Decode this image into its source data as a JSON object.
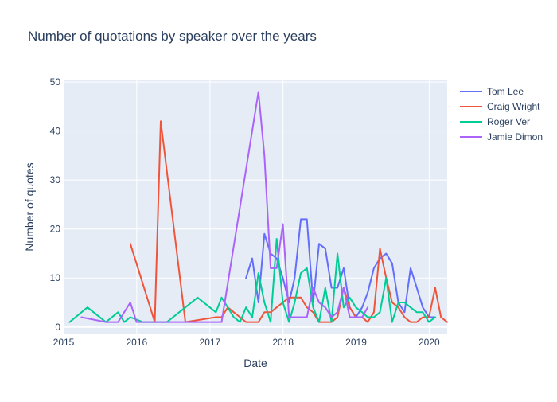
{
  "chart_data": {
    "type": "line",
    "title": "Number of quotations by speaker over the years",
    "xlabel": "Date",
    "ylabel": "Number of quotes",
    "xlim": [
      "2015-01-01",
      "2020-03-31"
    ],
    "ylim": [
      -1.5,
      50.5
    ],
    "xticks": [
      {
        "date": "2015-01-01",
        "label": "2015"
      },
      {
        "date": "2016-01-01",
        "label": "2016"
      },
      {
        "date": "2017-01-01",
        "label": "2017"
      },
      {
        "date": "2018-01-01",
        "label": "2018"
      },
      {
        "date": "2019-01-01",
        "label": "2019"
      },
      {
        "date": "2020-01-01",
        "label": "2020"
      }
    ],
    "yticks": [
      0,
      10,
      20,
      30,
      40,
      50
    ],
    "grid": true,
    "legend_position": "right",
    "series": [
      {
        "name": "Tom Lee",
        "color": "#636efa",
        "x": [
          "2017-06-30",
          "2017-07-31",
          "2017-08-31",
          "2017-09-30",
          "2017-10-31",
          "2017-11-30",
          "2017-12-31",
          "2018-01-31",
          "2018-02-28",
          "2018-03-31",
          "2018-04-30",
          "2018-05-31",
          "2018-06-30",
          "2018-07-31",
          "2018-08-31",
          "2018-09-30",
          "2018-10-31",
          "2018-11-30",
          "2018-12-31",
          "2019-01-31",
          "2019-02-28",
          "2019-03-31",
          "2019-04-30",
          "2019-05-31",
          "2019-06-30",
          "2019-07-31",
          "2019-08-31",
          "2019-09-30",
          "2019-10-31",
          "2019-11-30",
          "2019-12-31",
          "2020-01-31"
        ],
        "y": [
          10,
          14,
          5,
          19,
          15,
          14,
          10,
          5,
          10,
          22,
          22,
          5,
          17,
          16,
          8,
          8,
          12,
          4,
          2,
          4,
          7,
          12,
          14,
          15,
          13,
          5,
          3,
          12,
          8,
          4,
          2,
          2
        ]
      },
      {
        "name": "Craig Wright",
        "color": "#ef553b",
        "x": [
          "2015-11-30",
          "2016-03-31",
          "2016-04-30",
          "2016-08-31",
          "2017-01-31",
          "2017-02-28",
          "2017-03-31",
          "2017-04-30",
          "2017-05-31",
          "2017-06-30",
          "2017-07-31",
          "2017-08-31",
          "2017-09-30",
          "2017-10-31",
          "2017-11-30",
          "2017-12-31",
          "2018-01-31",
          "2018-02-28",
          "2018-03-31",
          "2018-04-30",
          "2018-05-31",
          "2018-06-30",
          "2018-07-31",
          "2018-08-31",
          "2018-09-30",
          "2018-10-31",
          "2018-11-30",
          "2018-12-31",
          "2019-01-31",
          "2019-02-28",
          "2019-03-31",
          "2019-04-30",
          "2019-05-31",
          "2019-06-30",
          "2019-07-31",
          "2019-08-31",
          "2019-09-30",
          "2019-10-31",
          "2019-11-30",
          "2019-12-31",
          "2020-01-31",
          "2020-02-29",
          "2020-03-31"
        ],
        "y": [
          17,
          1,
          42,
          1,
          2,
          2,
          4,
          3,
          2,
          1,
          1,
          1,
          3,
          3,
          4,
          5,
          6,
          6,
          6,
          4,
          3,
          1,
          1,
          1,
          2,
          8,
          4,
          2,
          2,
          1,
          3,
          16,
          10,
          5,
          4,
          2,
          1,
          1,
          2,
          2,
          8,
          2,
          1
        ]
      },
      {
        "name": "Roger Ver",
        "color": "#00cc96",
        "x": [
          "2015-01-31",
          "2015-04-30",
          "2015-07-31",
          "2015-09-30",
          "2015-10-31",
          "2015-11-30",
          "2016-01-31",
          "2016-03-31",
          "2016-05-31",
          "2016-07-31",
          "2016-08-31",
          "2016-10-31",
          "2017-01-31",
          "2017-02-28",
          "2017-04-30",
          "2017-05-31",
          "2017-06-30",
          "2017-07-31",
          "2017-08-31",
          "2017-09-30",
          "2017-10-31",
          "2017-11-30",
          "2017-12-31",
          "2018-01-31",
          "2018-02-28",
          "2018-03-31",
          "2018-04-30",
          "2018-05-31",
          "2018-06-30",
          "2018-07-31",
          "2018-08-31",
          "2018-09-30",
          "2018-10-31",
          "2018-11-30",
          "2018-12-31",
          "2019-01-31",
          "2019-02-28",
          "2019-03-31",
          "2019-04-30",
          "2019-05-31",
          "2019-06-30",
          "2019-07-31",
          "2019-08-31",
          "2019-09-30",
          "2019-10-31",
          "2019-11-30",
          "2019-12-31",
          "2020-01-31"
        ],
        "y": [
          1,
          4,
          1,
          3,
          1,
          2,
          1,
          1,
          1,
          3,
          4,
          6,
          3,
          6,
          2,
          1,
          4,
          2,
          11,
          5,
          1,
          18,
          5,
          1,
          5,
          11,
          12,
          4,
          1,
          8,
          1,
          15,
          4,
          6,
          4,
          3,
          2,
          2,
          3,
          10,
          1,
          5,
          5,
          4,
          3,
          3,
          1,
          2
        ]
      },
      {
        "name": "Jamie Dimon",
        "color": "#ab63fa",
        "x": [
          "2015-03-31",
          "2015-07-31",
          "2015-08-31",
          "2015-09-30",
          "2015-11-30",
          "2015-12-31",
          "2016-01-31",
          "2016-02-29",
          "2016-03-31",
          "2016-06-30",
          "2016-09-30",
          "2017-02-28",
          "2017-08-31",
          "2017-09-30",
          "2017-10-31",
          "2017-11-30",
          "2017-12-31",
          "2018-01-31",
          "2018-02-28",
          "2018-03-31",
          "2018-04-30",
          "2018-05-31",
          "2018-06-30",
          "2018-07-31",
          "2018-08-31",
          "2018-09-30",
          "2018-10-31",
          "2018-11-30",
          "2018-12-31",
          "2019-01-31",
          "2019-02-28"
        ],
        "y": [
          2,
          1,
          1,
          1,
          5,
          1,
          1,
          1,
          1,
          1,
          1,
          1,
          48,
          35,
          12,
          12,
          21,
          2,
          2,
          2,
          2,
          8,
          5,
          4,
          2,
          3,
          8,
          2,
          2,
          2,
          4
        ]
      }
    ]
  }
}
